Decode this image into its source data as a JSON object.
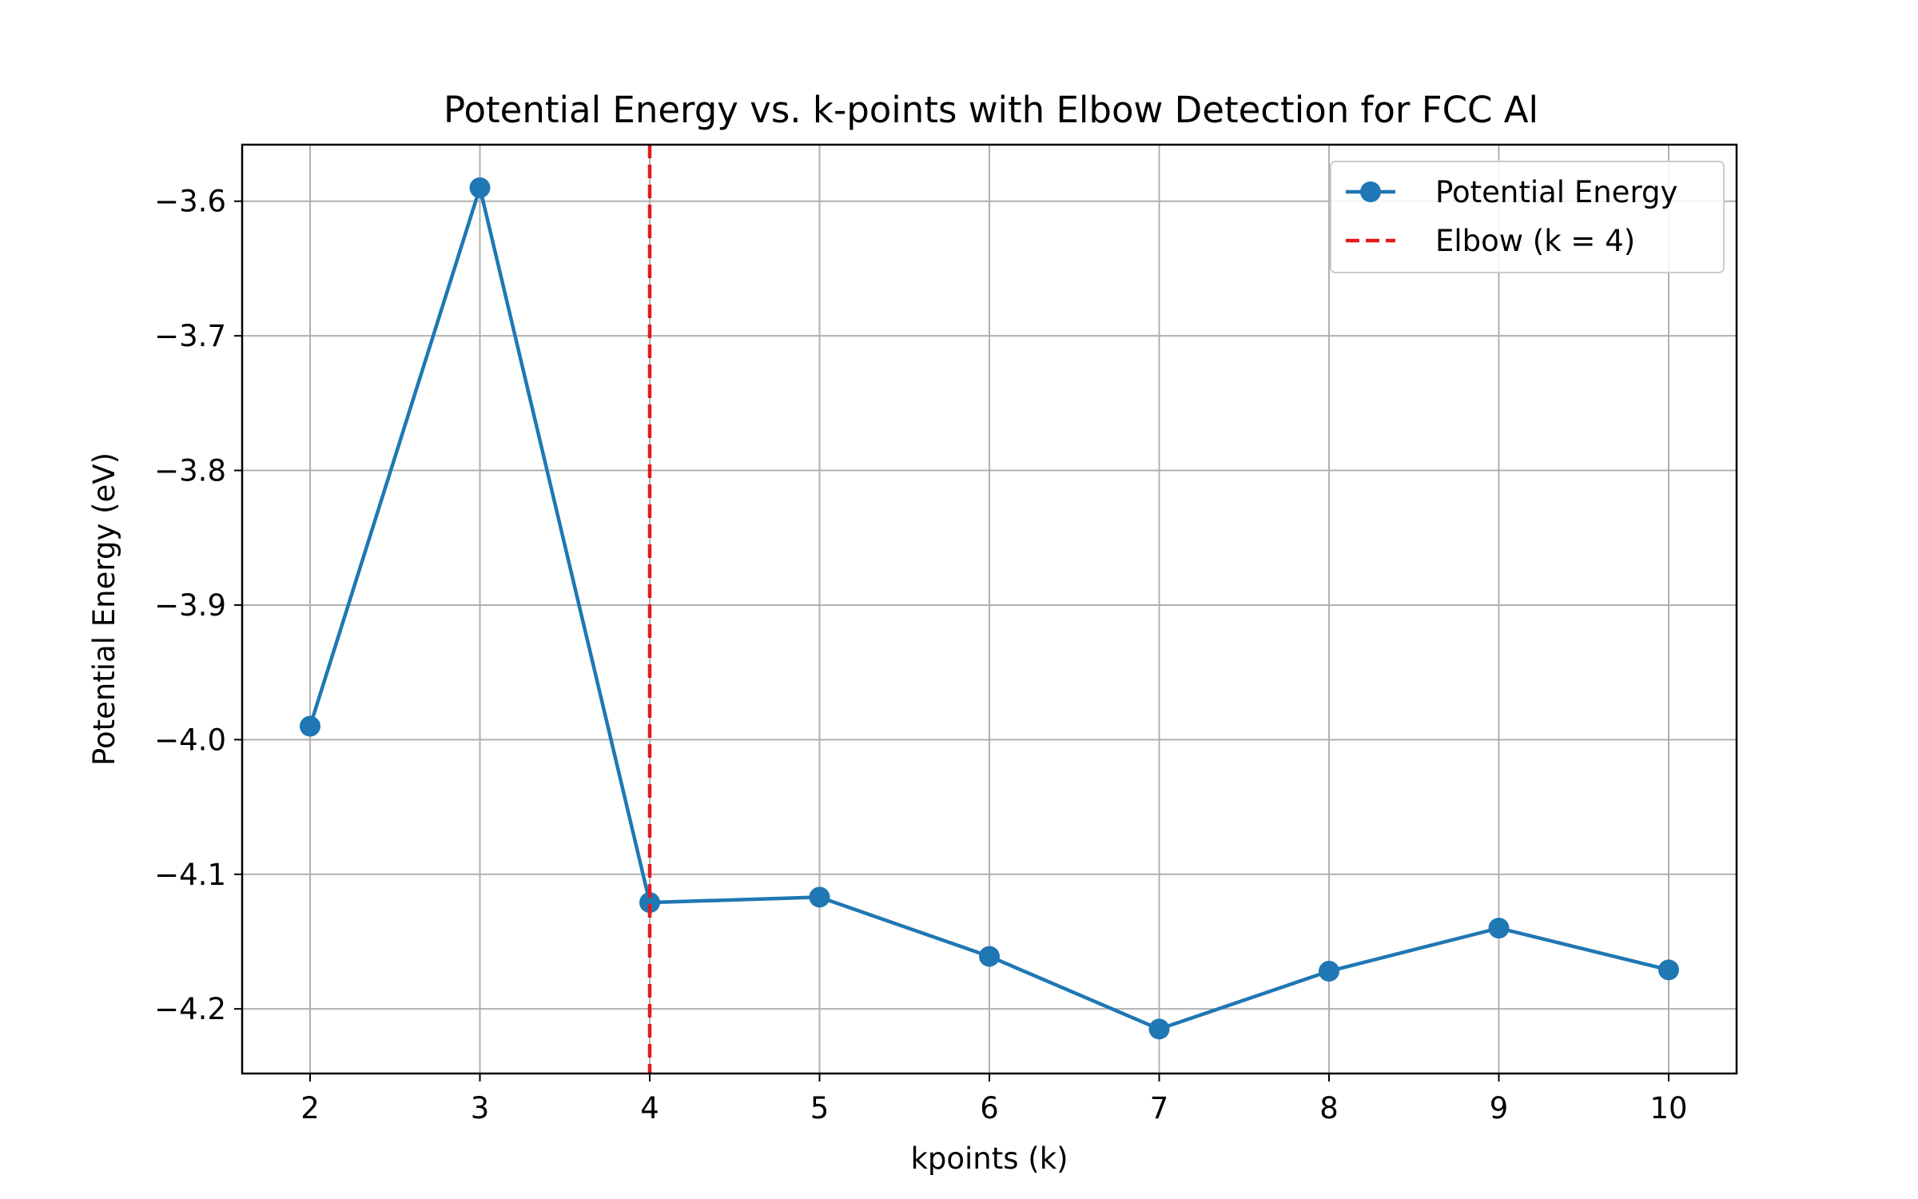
{
  "chart_data": {
    "type": "line",
    "title": "Potential Energy vs. k-points with Elbow Detection for FCC Al",
    "xlabel": "kpoints (k)",
    "ylabel": "Potential Energy (eV)",
    "x": [
      2,
      3,
      4,
      5,
      6,
      7,
      8,
      9,
      10
    ],
    "series": [
      {
        "name": "Potential Energy",
        "color": "#1f77b4",
        "marker": "circle",
        "values": [
          -3.99,
          -3.59,
          -4.121,
          -4.117,
          -4.161,
          -4.215,
          -4.172,
          -4.14,
          -4.171
        ]
      }
    ],
    "vline": {
      "x": 4,
      "label": "Elbow (k = 4)",
      "color": "#e41a1c",
      "style": "dashed"
    },
    "xlim": [
      1.6,
      10.4
    ],
    "ylim": [
      -4.248,
      -3.558
    ],
    "xticks": [
      2,
      3,
      4,
      5,
      6,
      7,
      8,
      9,
      10
    ],
    "xtick_labels": [
      "2",
      "3",
      "4",
      "5",
      "6",
      "7",
      "8",
      "9",
      "10"
    ],
    "yticks": [
      -3.6,
      -3.7,
      -3.8,
      -3.9,
      -4.0,
      -4.1,
      -4.2
    ],
    "ytick_labels": [
      "−3.6",
      "−3.7",
      "−3.8",
      "−3.9",
      "−4.0",
      "−4.1",
      "−4.2"
    ],
    "grid": true,
    "legend_position": "top-right",
    "legend": [
      {
        "label": "Potential Energy",
        "kind": "line-marker",
        "color": "#1f77b4"
      },
      {
        "label": "Elbow (k = 4)",
        "kind": "dashed-line",
        "color": "#e41a1c"
      }
    ]
  }
}
